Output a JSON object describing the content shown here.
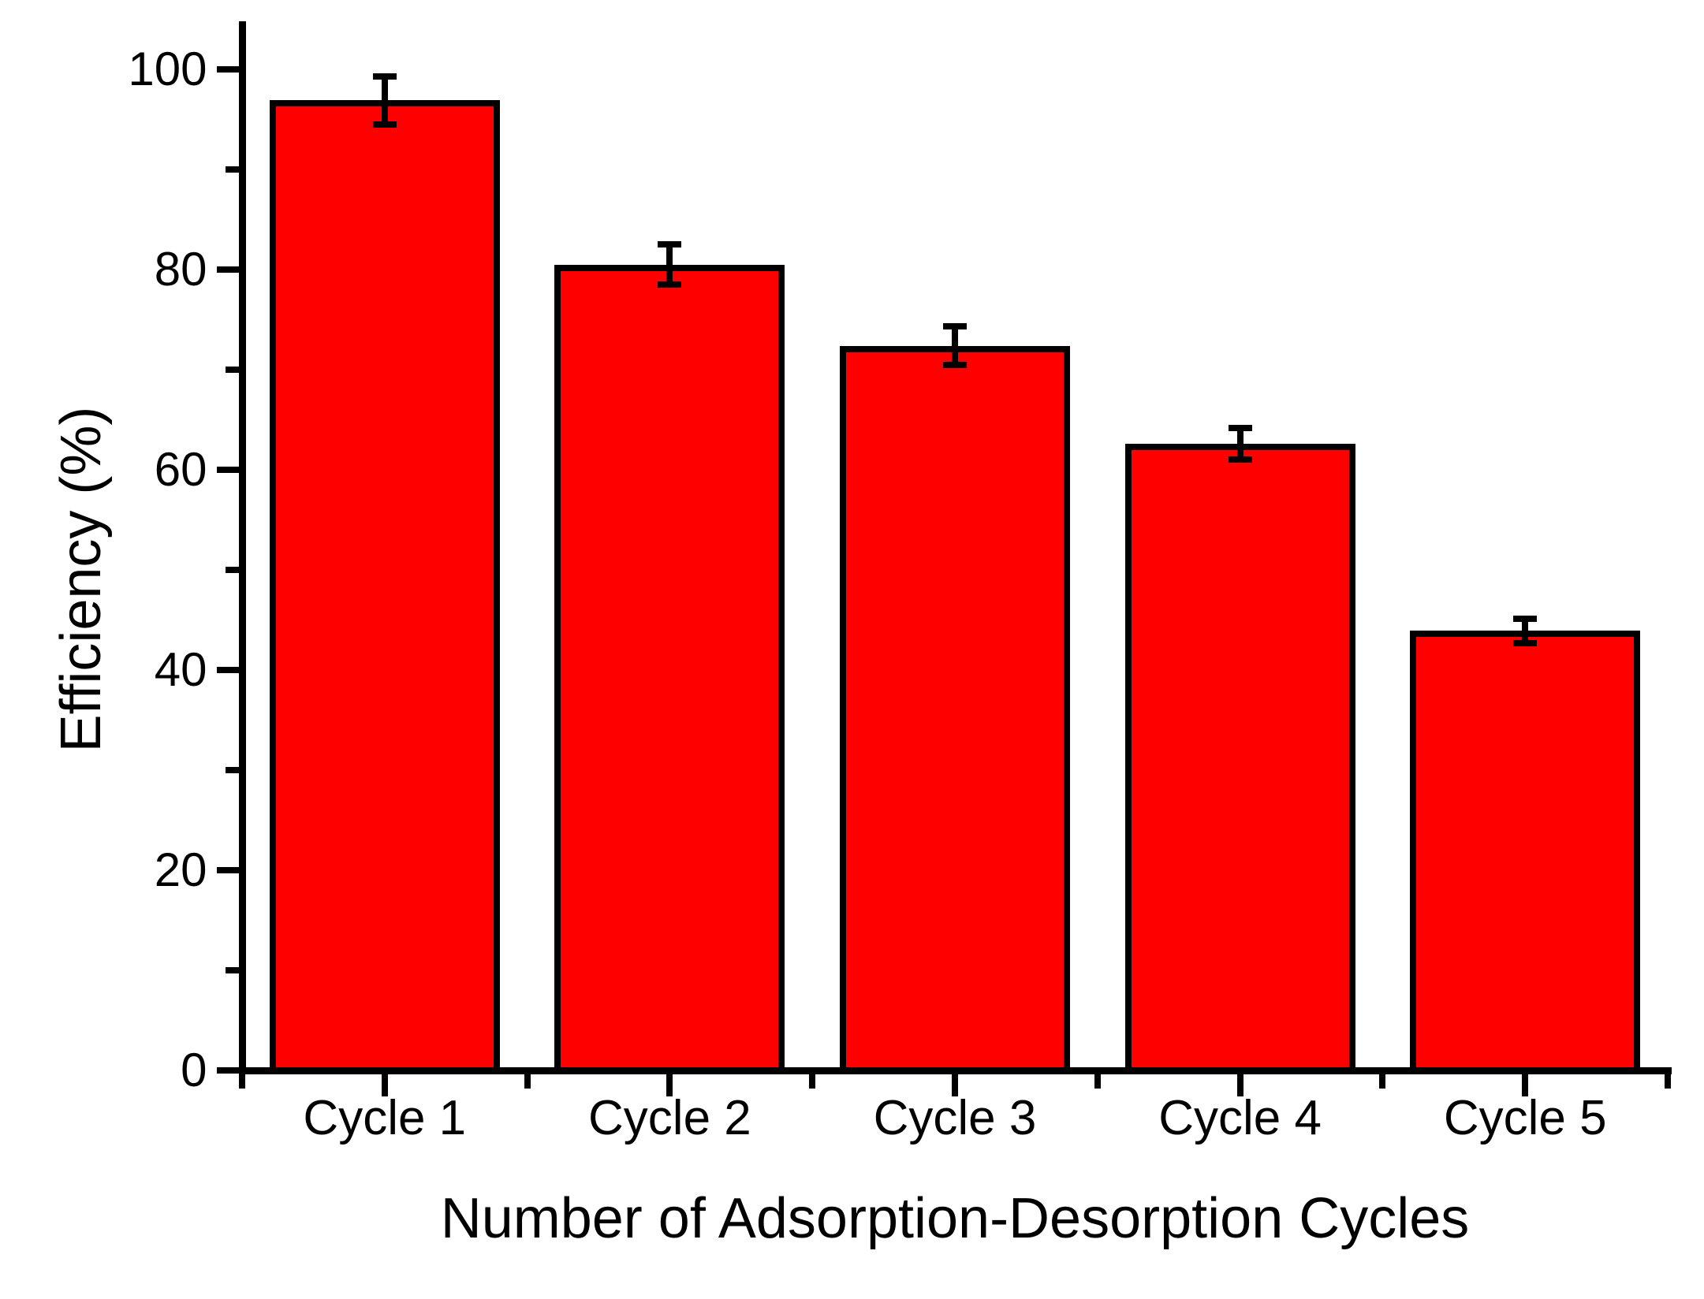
{
  "chart_data": {
    "type": "bar",
    "title": "",
    "xlabel": "Number of Adsorption-Desorption Cycles",
    "ylabel": "Efficiency (%)",
    "categories": [
      "Cycle 1",
      "Cycle 2",
      "Cycle 3",
      "Cycle 4",
      "Cycle 5"
    ],
    "values": [
      96.9,
      80.5,
      72.4,
      62.6,
      43.9
    ],
    "errors": [
      2.4,
      2.0,
      1.9,
      1.6,
      1.2
    ],
    "ylim": [
      0,
      105
    ],
    "yticks_major": [
      0,
      20,
      40,
      60,
      80,
      100
    ],
    "yticks_minor": [
      10,
      30,
      50,
      70,
      90
    ],
    "grid": false,
    "legend": false,
    "bar_color": "#FF0000",
    "bar_border_color": "#000000",
    "error_bar_color": "#000000",
    "axis_color": "#000000",
    "background_color": "#FFFFFF"
  }
}
